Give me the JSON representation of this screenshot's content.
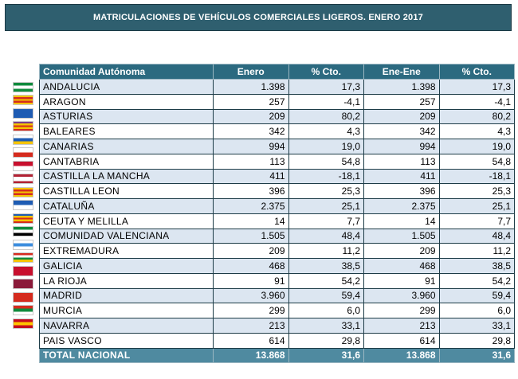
{
  "title": "MATRICULACIONES DE VEHÍCULOS COMERCIALES LIGEROS. ENERO 2017",
  "table": {
    "headers": [
      "Comunidad Autónoma",
      "Enero",
      "% Cto.",
      "Ene-Ene",
      "% Cto."
    ],
    "rows": [
      {
        "name": "ANDALUCIA",
        "enero": "1.398",
        "cto1": "17,3",
        "ene_ene": "1.398",
        "cto2": "17,3"
      },
      {
        "name": "ARAGON",
        "enero": "257",
        "cto1": "-4,1",
        "ene_ene": "257",
        "cto2": "-4,1"
      },
      {
        "name": "ASTURIAS",
        "enero": "209",
        "cto1": "80,2",
        "ene_ene": "209",
        "cto2": "80,2"
      },
      {
        "name": "BALEARES",
        "enero": "342",
        "cto1": "4,3",
        "ene_ene": "342",
        "cto2": "4,3"
      },
      {
        "name": "CANARIAS",
        "enero": "994",
        "cto1": "19,0",
        "ene_ene": "994",
        "cto2": "19,0"
      },
      {
        "name": "CANTABRIA",
        "enero": "113",
        "cto1": "54,8",
        "ene_ene": "113",
        "cto2": "54,8"
      },
      {
        "name": "CASTILLA LA MANCHA",
        "enero": "411",
        "cto1": "-18,1",
        "ene_ene": "411",
        "cto2": "-18,1"
      },
      {
        "name": "CASTILLA LEON",
        "enero": "396",
        "cto1": "25,3",
        "ene_ene": "396",
        "cto2": "25,3"
      },
      {
        "name": "CATALUÑA",
        "enero": "2.375",
        "cto1": "25,1",
        "ene_ene": "2.375",
        "cto2": "25,1"
      },
      {
        "name": "CEUTA Y MELILLA",
        "enero": "14",
        "cto1": "7,7",
        "ene_ene": "14",
        "cto2": "7,7"
      },
      {
        "name": "COMUNIDAD VALENCIANA",
        "enero": "1.505",
        "cto1": "48,4",
        "ene_ene": "1.505",
        "cto2": "48,4"
      },
      {
        "name": "EXTREMADURA",
        "enero": "209",
        "cto1": "11,2",
        "ene_ene": "209",
        "cto2": "11,2"
      },
      {
        "name": "GALICIA",
        "enero": "468",
        "cto1": "38,5",
        "ene_ene": "468",
        "cto2": "38,5"
      },
      {
        "name": "LA RIOJA",
        "enero": "91",
        "cto1": "54,2",
        "ene_ene": "91",
        "cto2": "54,2"
      },
      {
        "name": "MADRID",
        "enero": "3.960",
        "cto1": "59,4",
        "ene_ene": "3.960",
        "cto2": "59,4"
      },
      {
        "name": "MURCIA",
        "enero": "299",
        "cto1": "6,0",
        "ene_ene": "299",
        "cto2": "6,0"
      },
      {
        "name": "NAVARRA",
        "enero": "213",
        "cto1": "33,1",
        "ene_ene": "213",
        "cto2": "33,1"
      },
      {
        "name": "PAIS VASCO",
        "enero": "614",
        "cto1": "29,8",
        "ene_ene": "614",
        "cto2": "29,8"
      }
    ],
    "total": {
      "name": "TOTAL NACIONAL",
      "enero": "13.868",
      "cto1": "31,6",
      "ene_ene": "13.868",
      "cto2": "31,6"
    }
  },
  "flags": [
    {
      "name": "andalucia-flag-icon",
      "colors": [
        "#0f8a3c",
        "#ffffff",
        "#0f8a3c"
      ]
    },
    {
      "name": "aragon-flag-icon",
      "colors": [
        "#f5c400",
        "#d52b1e",
        "#f5c400",
        "#d52b1e",
        "#f5c400"
      ]
    },
    {
      "name": "asturias-flag-icon",
      "colors": [
        "#1e5cb3"
      ]
    },
    {
      "name": "baleares-flag-icon",
      "colors": [
        "#7d3d8c",
        "#f5c400",
        "#d52b1e",
        "#f5c400",
        "#d52b1e"
      ]
    },
    {
      "name": "canarias-flag-icon",
      "colors": [
        "#ffffff",
        "#1e5cb3",
        "#f5c400"
      ]
    },
    {
      "name": "cantabria-flag-icon",
      "colors": [
        "#ffffff",
        "#d52b1e"
      ]
    },
    {
      "name": "castilla-la-mancha-flag-icon",
      "colors": [
        "#c8102e",
        "#ffffff"
      ]
    },
    {
      "name": "castilla-leon-flag-icon",
      "colors": [
        "#b22234",
        "#ffffff",
        "#ffffff",
        "#b22234"
      ]
    },
    {
      "name": "cataluna-flag-icon",
      "colors": [
        "#f5c400",
        "#d52b1e",
        "#f5c400",
        "#d52b1e",
        "#f5c400"
      ]
    },
    {
      "name": "ceuta-melilla-flag-icon",
      "colors": [
        "#1e5cb3",
        "#ffffff"
      ]
    },
    {
      "name": "comunidad-valenciana-flag-icon",
      "colors": [
        "#1e5cb3",
        "#f5c400",
        "#d52b1e",
        "#f5c400",
        "#d52b1e"
      ]
    },
    {
      "name": "extremadura-flag-icon",
      "colors": [
        "#0f8a3c",
        "#ffffff",
        "#000000"
      ]
    },
    {
      "name": "galicia-flag-icon",
      "colors": [
        "#ffffff",
        "#3c8dde",
        "#ffffff"
      ]
    },
    {
      "name": "la-rioja-flag-icon",
      "colors": [
        "#d52b1e",
        "#ffffff",
        "#0f8a3c",
        "#f5c400"
      ]
    },
    {
      "name": "madrid-flag-icon",
      "colors": [
        "#c8102e"
      ]
    },
    {
      "name": "murcia-flag-icon",
      "colors": [
        "#8b1a3a"
      ]
    },
    {
      "name": "navarra-flag-icon",
      "colors": [
        "#d52b1e"
      ]
    },
    {
      "name": "pais-vasco-flag-icon",
      "colors": [
        "#d52b1e",
        "#0f8a3c",
        "#ffffff"
      ]
    },
    {
      "name": "espana-flag-icon",
      "colors": [
        "#c60b1e",
        "#ffc400",
        "#c60b1e"
      ]
    }
  ]
}
